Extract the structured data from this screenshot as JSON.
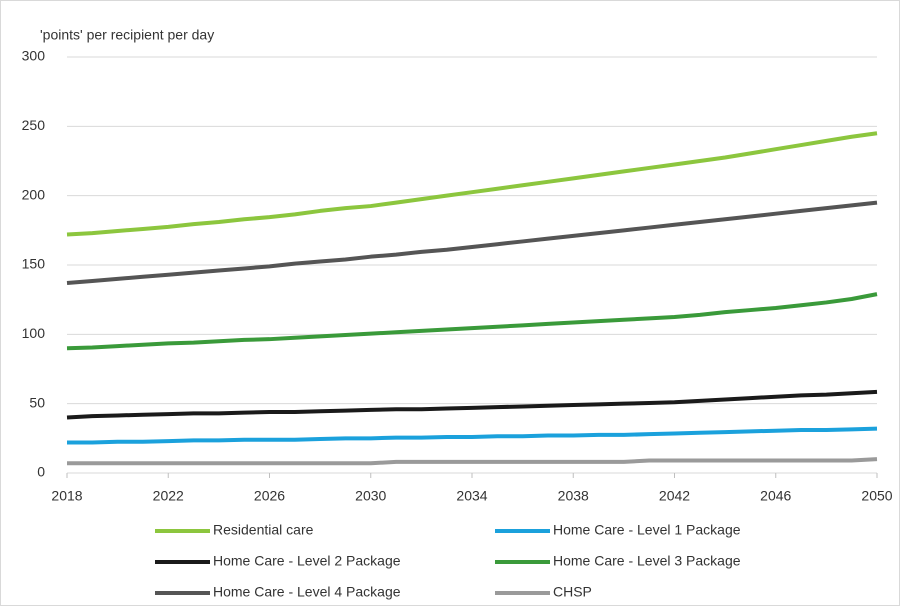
{
  "chart_data": {
    "type": "line",
    "title": "'points' per recipient per day",
    "x": [
      2018,
      2019,
      2020,
      2021,
      2022,
      2023,
      2024,
      2025,
      2026,
      2027,
      2028,
      2029,
      2030,
      2031,
      2032,
      2033,
      2034,
      2035,
      2036,
      2037,
      2038,
      2039,
      2040,
      2041,
      2042,
      2043,
      2044,
      2045,
      2046,
      2047,
      2048,
      2049,
      2050
    ],
    "xlim": [
      2018,
      2050
    ],
    "xticks": [
      2018,
      2022,
      2026,
      2030,
      2034,
      2038,
      2042,
      2046,
      2050
    ],
    "ylim": [
      0,
      300
    ],
    "yticks": [
      0,
      50,
      100,
      150,
      200,
      250,
      300
    ],
    "grid": true,
    "series": [
      {
        "name": "Residential care",
        "color": "#8cc63e",
        "values": [
          172,
          173,
          174.5,
          176,
          177.5,
          179.5,
          181,
          183,
          184.5,
          186.5,
          189,
          191,
          192.5,
          195,
          197.5,
          200,
          202.5,
          205,
          207.5,
          210,
          212.5,
          215,
          217.5,
          220,
          222.5,
          225,
          227.5,
          230.5,
          233.5,
          236.5,
          239.5,
          242.5,
          245
        ]
      },
      {
        "name": "Home Care - Level 1 Package",
        "color": "#1ba1dc",
        "values": [
          22,
          22,
          22.5,
          22.5,
          23,
          23.5,
          23.5,
          24,
          24,
          24,
          24.5,
          25,
          25,
          25.5,
          25.5,
          26,
          26,
          26.5,
          26.5,
          27,
          27,
          27.5,
          27.5,
          28,
          28.5,
          29,
          29.5,
          30,
          30.5,
          31,
          31,
          31.5,
          32
        ]
      },
      {
        "name": "Home Care - Level 2 Package",
        "color": "#1a1a1a",
        "values": [
          40,
          41,
          41.5,
          42,
          42.5,
          43,
          43,
          43.5,
          44,
          44,
          44.5,
          45,
          45.5,
          46,
          46,
          46.5,
          47,
          47.5,
          48,
          48.5,
          49,
          49.5,
          50,
          50.5,
          51,
          52,
          53,
          54,
          55,
          56,
          56.5,
          57.5,
          58.5
        ]
      },
      {
        "name": "Home Care - Level 3 Package",
        "color": "#3a9a3a",
        "values": [
          90,
          90.5,
          91.5,
          92.5,
          93.5,
          94,
          95,
          96,
          96.5,
          97.5,
          98.5,
          99.5,
          100.5,
          101.5,
          102.5,
          103.5,
          104.5,
          105.5,
          106.5,
          107.5,
          108.5,
          109.5,
          110.5,
          111.5,
          112.5,
          114,
          116,
          117.5,
          119,
          121,
          123,
          125.5,
          129
        ]
      },
      {
        "name": "Home Care - Level 4 Package",
        "color": "#555555",
        "values": [
          137,
          138.5,
          140,
          141.5,
          143,
          144.5,
          146,
          147.5,
          149,
          151,
          152.5,
          154,
          156,
          157.5,
          159.5,
          161,
          163,
          165,
          167,
          169,
          171,
          173,
          175,
          177,
          179,
          181,
          183,
          185,
          187,
          189,
          191,
          193,
          195
        ]
      },
      {
        "name": "CHSP",
        "color": "#9a9a9a",
        "values": [
          7,
          7,
          7,
          7,
          7,
          7,
          7,
          7,
          7,
          7,
          7,
          7,
          7,
          8,
          8,
          8,
          8,
          8,
          8,
          8,
          8,
          8,
          8,
          9,
          9,
          9,
          9,
          9,
          9,
          9,
          9,
          9,
          10
        ]
      }
    ]
  }
}
